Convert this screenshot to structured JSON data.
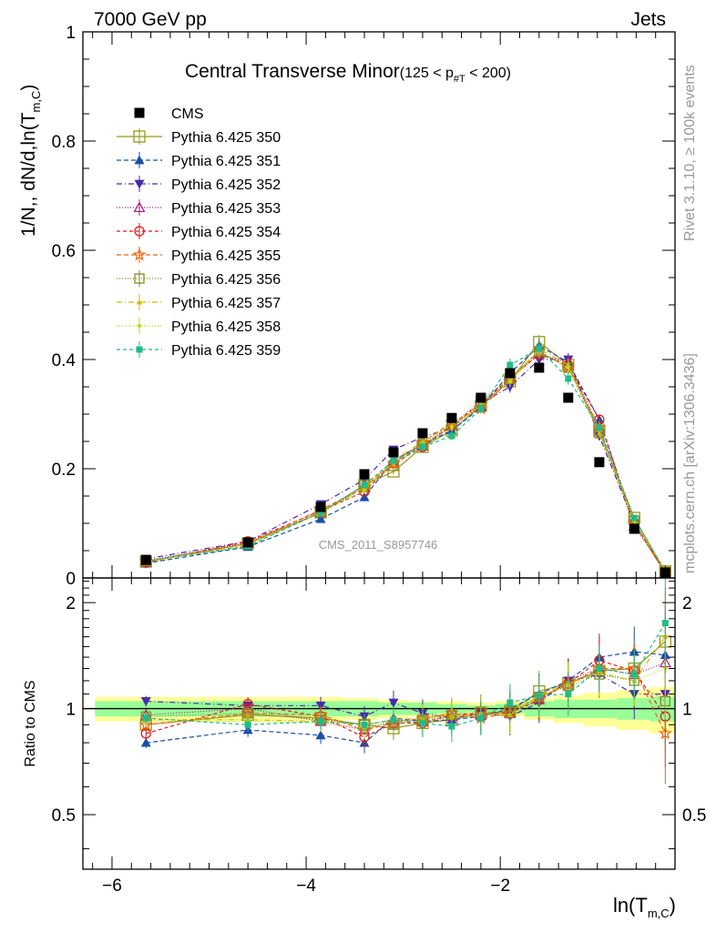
{
  "header": {
    "left": "7000 GeV pp",
    "right": "Jets",
    "side_top": "Rivet 3.1.10, ≥ 100k events",
    "side_bottom": "mcplots.cern.ch [arXiv:1306.3436]",
    "watermark": "CMS_2011_S8957746"
  },
  "chart_data": [
    {
      "type": "scatter",
      "title_main": "Central Transverse Minor",
      "title_sub_pre": "(125 < p",
      "title_sub_subscript": "#T",
      "title_sub_post": "  < 200)",
      "ylabel_pre": "1/N",
      "ylabel_mid": ",, dN/d,ln(T",
      "ylabel_sub": "m,C",
      "ylabel_post": ")",
      "xlim": [
        -6.3,
        -0.2
      ],
      "ylim": [
        0,
        1.0
      ],
      "yticks": [
        0,
        0.2,
        0.4,
        0.6,
        0.8,
        1
      ],
      "yticks_labels": [
        "0",
        "0.2",
        "0.4",
        "0.6",
        "0.8",
        "1"
      ],
      "x": [
        -5.65,
        -4.6,
        -3.85,
        -3.4,
        -3.1,
        -2.8,
        -2.5,
        -2.2,
        -1.9,
        -1.6,
        -1.3,
        -0.98,
        -0.62,
        -0.3
      ],
      "series": [
        {
          "name": "CMS",
          "color": "#000000",
          "marker": "square-filled",
          "dash": "none",
          "values": [
            0.033,
            0.065,
            0.13,
            0.19,
            0.23,
            0.265,
            0.293,
            0.33,
            0.375,
            0.385,
            0.33,
            0.212,
            0.09,
            0.01
          ]
        },
        {
          "name": "Pythia 6.425 350",
          "color": "#99991a",
          "marker": "square-open",
          "dash": "solid",
          "values": [
            0.03,
            0.063,
            0.12,
            0.17,
            0.195,
            0.24,
            0.27,
            0.315,
            0.36,
            0.432,
            0.39,
            0.27,
            0.11,
            0.012
          ]
        },
        {
          "name": "Pythia 6.425 351",
          "color": "#1a4faa",
          "marker": "triangle-up-filled",
          "dash": "5,3",
          "values": [
            0.027,
            0.057,
            0.108,
            0.148,
            0.215,
            0.245,
            0.27,
            0.312,
            0.375,
            0.425,
            0.395,
            0.29,
            0.1,
            0.013
          ]
        },
        {
          "name": "Pythia 6.425 352",
          "color": "#4a2aa8",
          "marker": "triangle-down-filled",
          "dash": "6,3,1,3",
          "values": [
            0.035,
            0.067,
            0.135,
            0.18,
            0.235,
            0.258,
            0.275,
            0.32,
            0.35,
            0.4,
            0.4,
            0.26,
            0.1,
            0.011
          ]
        },
        {
          "name": "Pythia 6.425 353",
          "color": "#b0207a",
          "marker": "triangle-up-open",
          "dash": "1,2",
          "values": [
            0.032,
            0.065,
            0.12,
            0.165,
            0.215,
            0.242,
            0.278,
            0.315,
            0.365,
            0.41,
            0.395,
            0.275,
            0.095,
            0.013
          ]
        },
        {
          "name": "Pythia 6.425 354",
          "color": "#dd1a1a",
          "marker": "circle-open",
          "dash": "4,3",
          "values": [
            0.028,
            0.067,
            0.123,
            0.158,
            0.21,
            0.24,
            0.28,
            0.32,
            0.365,
            0.41,
            0.39,
            0.29,
            0.1,
            0.009
          ]
        },
        {
          "name": "Pythia 6.425 355",
          "color": "#ee6611",
          "marker": "star-open",
          "dash": "5,3",
          "values": [
            0.03,
            0.063,
            0.125,
            0.165,
            0.21,
            0.248,
            0.285,
            0.31,
            0.365,
            0.415,
            0.385,
            0.275,
            0.1,
            0.008
          ]
        },
        {
          "name": "Pythia 6.425 356",
          "color": "#888820",
          "marker": "square-open-small",
          "dash": "1,2",
          "values": [
            0.031,
            0.063,
            0.12,
            0.17,
            0.205,
            0.245,
            0.28,
            0.325,
            0.365,
            0.415,
            0.385,
            0.265,
            0.105,
            0.011
          ]
        },
        {
          "name": "Pythia 6.425 357",
          "color": "#ccbb00",
          "marker": "tri-small",
          "dash": "6,3,1,3",
          "values": [
            0.03,
            0.06,
            0.12,
            0.165,
            0.215,
            0.25,
            0.28,
            0.315,
            0.36,
            0.42,
            0.39,
            0.265,
            0.105,
            0.013
          ]
        },
        {
          "name": "Pythia 6.425 358",
          "color": "#bbdd11",
          "marker": "dot-small",
          "dash": "1,2",
          "values": [
            0.029,
            0.06,
            0.118,
            0.16,
            0.21,
            0.245,
            0.275,
            0.32,
            0.36,
            0.415,
            0.385,
            0.27,
            0.105,
            0.012
          ]
        },
        {
          "name": "Pythia 6.425 359",
          "color": "#22bb88",
          "marker": "square-filled-small",
          "dash": "4,3",
          "values": [
            0.031,
            0.058,
            0.12,
            0.17,
            0.215,
            0.24,
            0.26,
            0.31,
            0.39,
            0.42,
            0.365,
            0.275,
            0.11,
            0.012
          ]
        }
      ]
    },
    {
      "type": "scatter",
      "ylabel": "Ratio to CMS",
      "xlabel_pre": "ln(T",
      "xlabel_sub": "m,C",
      "xlabel_post": ")",
      "xlim": [
        -6.3,
        -0.2
      ],
      "ylim": [
        0.35,
        2.35
      ],
      "yticks": [
        0.5,
        1,
        2
      ],
      "yticks_labels": [
        "0.5",
        "1",
        "2"
      ],
      "xticks": [
        -6,
        -4,
        -2
      ],
      "xticks_labels": [
        "−6",
        "−4",
        "−2"
      ],
      "reference_line": 1,
      "band_inner": [
        0.05,
        0.05,
        0.05,
        0.05,
        0.04,
        0.04,
        0.03,
        0.02,
        0.03,
        0.05,
        0.06,
        0.06,
        0.07,
        0.08
      ],
      "band_outer": [
        0.08,
        0.08,
        0.08,
        0.07,
        0.06,
        0.05,
        0.05,
        0.04,
        0.05,
        0.07,
        0.09,
        0.11,
        0.13,
        0.15
      ],
      "series": [
        {
          "name": "Pythia 6.425 350",
          "values": [
            0.9,
            0.96,
            0.94,
            0.9,
            0.88,
            0.91,
            0.93,
            0.97,
            0.98,
            1.12,
            1.18,
            1.28,
            1.3,
            1.55
          ]
        },
        {
          "name": "Pythia 6.425 351",
          "values": [
            0.8,
            0.87,
            0.84,
            0.8,
            0.94,
            0.92,
            0.93,
            0.95,
            1.0,
            1.1,
            1.2,
            1.4,
            1.45,
            1.42
          ]
        },
        {
          "name": "Pythia 6.425 352",
          "values": [
            1.05,
            1.02,
            1.02,
            0.95,
            1.04,
            0.97,
            0.94,
            0.97,
            0.95,
            1.04,
            1.2,
            1.25,
            1.1,
            1.1
          ]
        },
        {
          "name": "Pythia 6.425 353",
          "values": [
            0.96,
            1.0,
            0.92,
            0.87,
            0.93,
            0.92,
            0.95,
            0.96,
            0.97,
            1.06,
            1.2,
            1.3,
            1.25,
            1.35
          ]
        },
        {
          "name": "Pythia 6.425 354",
          "values": [
            0.85,
            1.03,
            0.95,
            0.83,
            0.91,
            0.91,
            0.96,
            0.97,
            0.97,
            1.06,
            1.18,
            1.37,
            1.28,
            0.95
          ]
        },
        {
          "name": "Pythia 6.425 355",
          "values": [
            0.9,
            0.97,
            0.96,
            0.87,
            0.91,
            0.94,
            0.97,
            0.94,
            0.97,
            1.08,
            1.17,
            1.3,
            1.3,
            0.85
          ]
        },
        {
          "name": "Pythia 6.425 356",
          "values": [
            0.95,
            0.97,
            0.93,
            0.9,
            0.9,
            0.93,
            0.96,
            0.98,
            0.98,
            1.08,
            1.16,
            1.25,
            1.2,
            1.05
          ]
        },
        {
          "name": "Pythia 6.425 357",
          "values": [
            0.93,
            0.93,
            0.92,
            0.9,
            0.93,
            0.94,
            0.96,
            0.96,
            0.96,
            1.09,
            1.18,
            1.26,
            1.2,
            1.6
          ]
        },
        {
          "name": "Pythia 6.425 358",
          "values": [
            0.92,
            0.92,
            0.91,
            0.88,
            0.92,
            0.92,
            0.94,
            0.97,
            0.96,
            1.08,
            1.17,
            1.27,
            1.2,
            1.3
          ]
        },
        {
          "name": "Pythia 6.425 359",
          "values": [
            0.94,
            0.9,
            0.92,
            0.9,
            0.93,
            0.91,
            0.89,
            0.94,
            1.04,
            1.09,
            1.1,
            1.3,
            1.25,
            1.75
          ]
        }
      ]
    }
  ]
}
